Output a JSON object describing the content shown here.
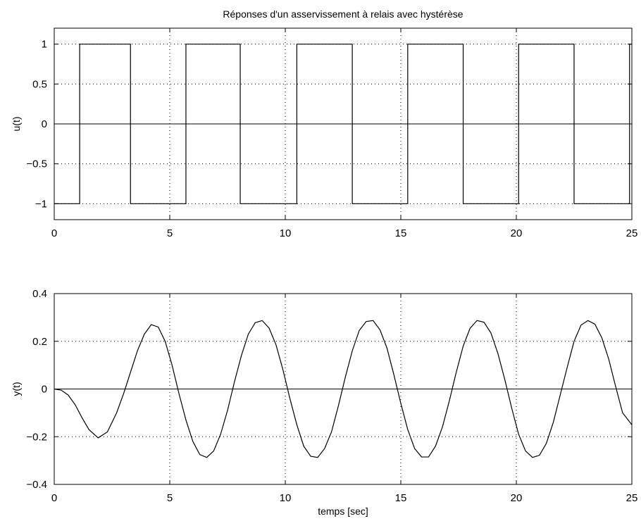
{
  "chart_data": [
    {
      "type": "line",
      "title": "Réponses d'un asservissement à relais avec hystérèse",
      "xlabel": "",
      "ylabel": "u(t)",
      "xlim": [
        0,
        25
      ],
      "ylim": [
        -1.2,
        1.2
      ],
      "x_ticks": [
        0,
        5,
        10,
        15,
        20,
        25
      ],
      "x_tick_labels": [
        "0",
        "5",
        "10",
        "15",
        "20",
        "25"
      ],
      "y_ticks": [
        -1,
        -0.5,
        0,
        0.5,
        1
      ],
      "y_tick_labels": [
        "−1",
        "−0.5",
        "0",
        "0.5",
        "1"
      ],
      "grid": true,
      "zero_line": true,
      "series": [
        {
          "x": [
            0,
            1.1,
            1.1,
            3.3,
            3.3,
            5.7,
            5.7,
            8.05,
            8.05,
            10.5,
            10.5,
            12.9,
            12.9,
            15.3,
            15.3,
            17.7,
            17.7,
            20.1,
            20.1,
            22.5,
            22.5,
            24.9,
            24.9,
            25
          ],
          "y": [
            -1,
            -1,
            1,
            1,
            -1,
            -1,
            1,
            1,
            -1,
            -1,
            1,
            1,
            -1,
            -1,
            1,
            1,
            -1,
            -1,
            1,
            1,
            -1,
            -1,
            1,
            1
          ]
        }
      ]
    },
    {
      "type": "line",
      "title": "",
      "xlabel": "temps [sec]",
      "ylabel": "y(t)",
      "xlim": [
        0,
        25
      ],
      "ylim": [
        -0.4,
        0.4
      ],
      "x_ticks": [
        0,
        5,
        10,
        15,
        20,
        25
      ],
      "x_tick_labels": [
        "0",
        "5",
        "10",
        "15",
        "20",
        "25"
      ],
      "y_ticks": [
        -0.4,
        -0.2,
        0,
        0.2,
        0.4
      ],
      "y_tick_labels": [
        "−0.4",
        "−0.2",
        "0",
        "0.2",
        "0.4"
      ],
      "grid": true,
      "zero_line": true,
      "series": [
        {
          "x": [
            0,
            0.3,
            0.6,
            0.9,
            1.2,
            1.5,
            1.9,
            2.3,
            2.7,
            3.0,
            3.3,
            3.6,
            3.9,
            4.2,
            4.5,
            4.8,
            5.1,
            5.4,
            5.7,
            6.0,
            6.3,
            6.6,
            6.9,
            7.2,
            7.5,
            7.8,
            8.1,
            8.4,
            8.7,
            9.0,
            9.3,
            9.6,
            9.9,
            10.2,
            10.5,
            10.8,
            11.1,
            11.4,
            11.7,
            12.0,
            12.3,
            12.6,
            12.9,
            13.2,
            13.5,
            13.8,
            14.1,
            14.4,
            14.7,
            15.0,
            15.3,
            15.6,
            15.9,
            16.2,
            16.5,
            16.8,
            17.1,
            17.4,
            17.7,
            18.0,
            18.3,
            18.6,
            18.9,
            19.2,
            19.5,
            19.8,
            20.1,
            20.4,
            20.7,
            21.0,
            21.3,
            21.6,
            21.9,
            22.2,
            22.5,
            22.8,
            23.1,
            23.4,
            23.7,
            24.0,
            24.3,
            24.6,
            25.0
          ],
          "y": [
            0.0,
            -0.005,
            -0.025,
            -0.065,
            -0.12,
            -0.17,
            -0.205,
            -0.18,
            -0.1,
            -0.02,
            0.07,
            0.16,
            0.23,
            0.27,
            0.26,
            0.2,
            0.1,
            -0.02,
            -0.13,
            -0.22,
            -0.275,
            -0.287,
            -0.26,
            -0.19,
            -0.09,
            0.03,
            0.14,
            0.23,
            0.278,
            0.287,
            0.255,
            0.185,
            0.08,
            -0.04,
            -0.15,
            -0.24,
            -0.282,
            -0.287,
            -0.25,
            -0.18,
            -0.07,
            0.05,
            0.16,
            0.245,
            0.283,
            0.287,
            0.248,
            0.172,
            0.06,
            -0.06,
            -0.17,
            -0.25,
            -0.285,
            -0.285,
            -0.24,
            -0.16,
            -0.05,
            0.07,
            0.18,
            0.255,
            0.287,
            0.28,
            0.235,
            0.15,
            0.04,
            -0.08,
            -0.19,
            -0.26,
            -0.287,
            -0.278,
            -0.228,
            -0.14,
            -0.025,
            0.09,
            0.2,
            0.268,
            0.287,
            0.272,
            0.215,
            0.125,
            0.01,
            -0.1,
            -0.15
          ]
        }
      ]
    }
  ]
}
